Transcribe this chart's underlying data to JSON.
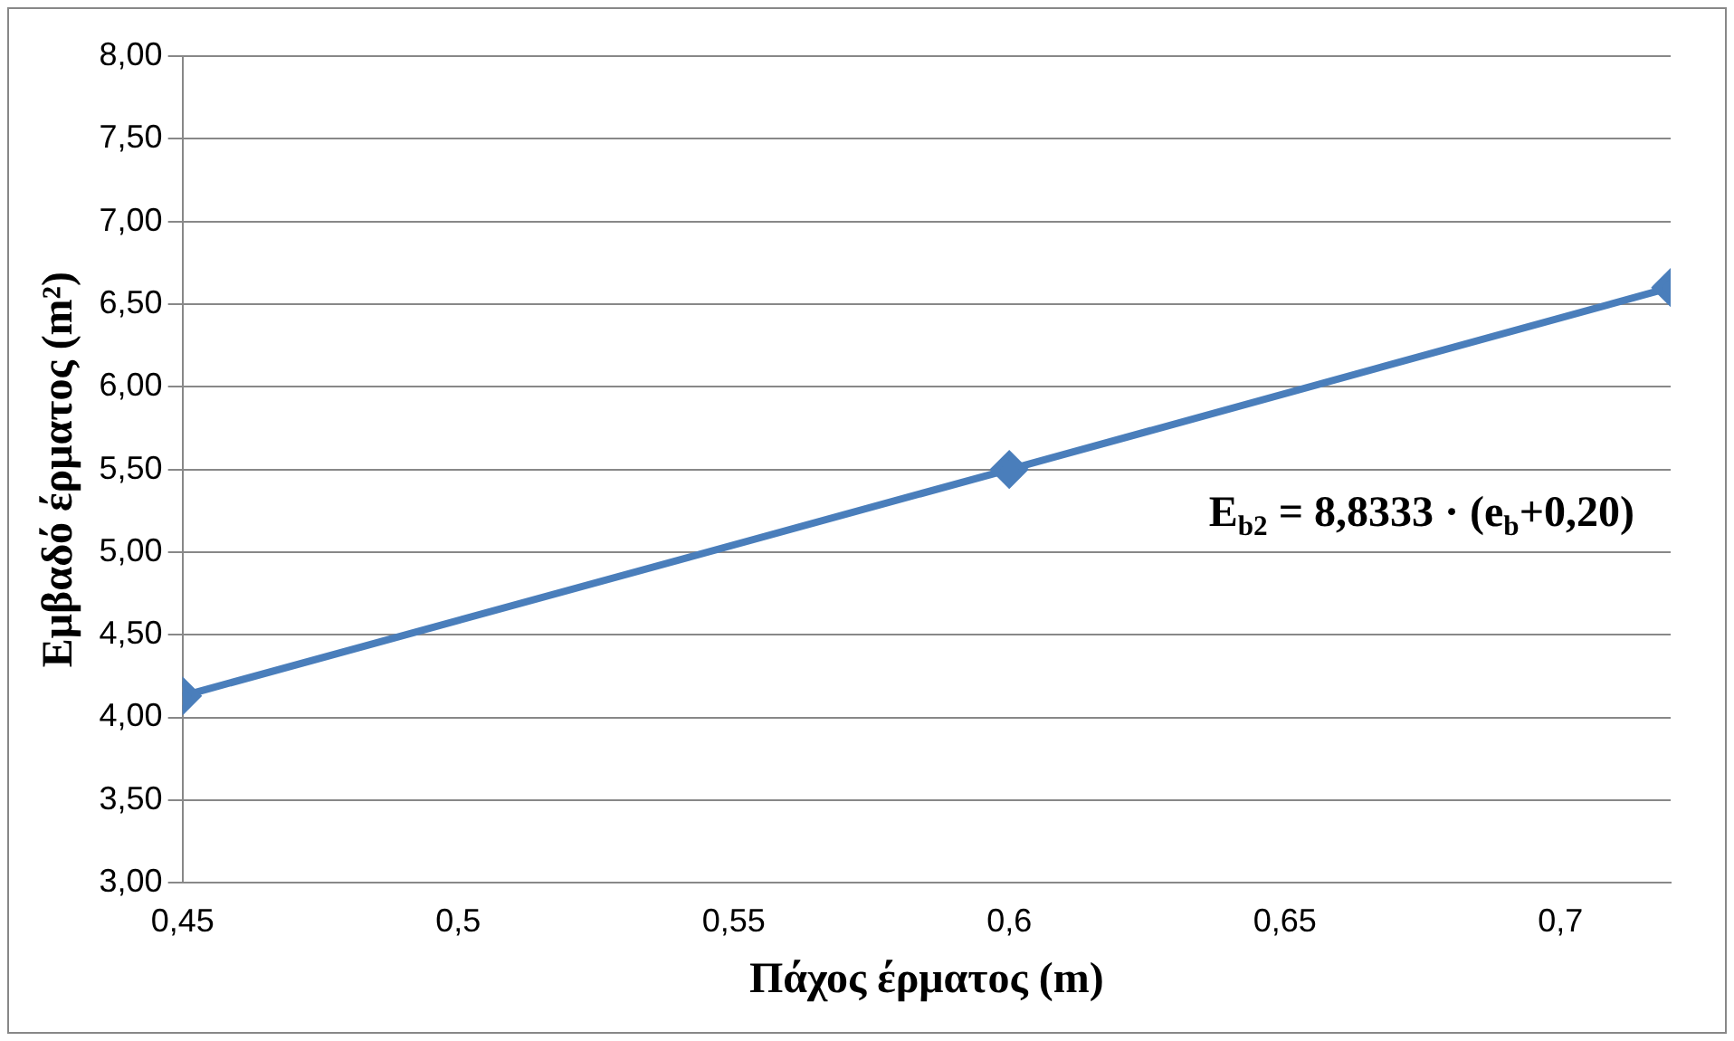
{
  "chart_data": {
    "type": "line",
    "xlabel": "Πάχος έρματος (m)",
    "ylabel": "Εμβαδό έρματος (m²)",
    "x": [
      0.45,
      0.6,
      0.72
    ],
    "series": [
      {
        "color": "#4a7ebb",
        "values": [
          4.13,
          5.5,
          6.6
        ]
      }
    ],
    "xlim": [
      0.45,
      0.72
    ],
    "xticks": [
      {
        "value": 0.45,
        "label": "0,45"
      },
      {
        "value": 0.5,
        "label": "0,5"
      },
      {
        "value": 0.55,
        "label": "0,55"
      },
      {
        "value": 0.6,
        "label": "0,6"
      },
      {
        "value": 0.65,
        "label": "0,65"
      },
      {
        "value": 0.7,
        "label": "0,7"
      }
    ],
    "ylim": [
      3,
      8
    ],
    "yticks": [
      {
        "value": 3,
        "label": "3,00"
      },
      {
        "value": 3.5,
        "label": "3,50"
      },
      {
        "value": 4,
        "label": "4,00"
      },
      {
        "value": 4.5,
        "label": "4,50"
      },
      {
        "value": 5,
        "label": "5,00"
      },
      {
        "value": 5.5,
        "label": "5,50"
      },
      {
        "value": 6,
        "label": "6,00"
      },
      {
        "value": 6.5,
        "label": "6,50"
      },
      {
        "value": 7,
        "label": "7,00"
      },
      {
        "value": 7.5,
        "label": "7,50"
      },
      {
        "value": 8,
        "label": "8,00"
      }
    ],
    "annotations": [
      "E$_{b2}$ = 8,8333 · (e$_{b}$+0,20)"
    ],
    "grid": "y",
    "legend": false,
    "marker": "diamond",
    "line_style": "solid"
  }
}
